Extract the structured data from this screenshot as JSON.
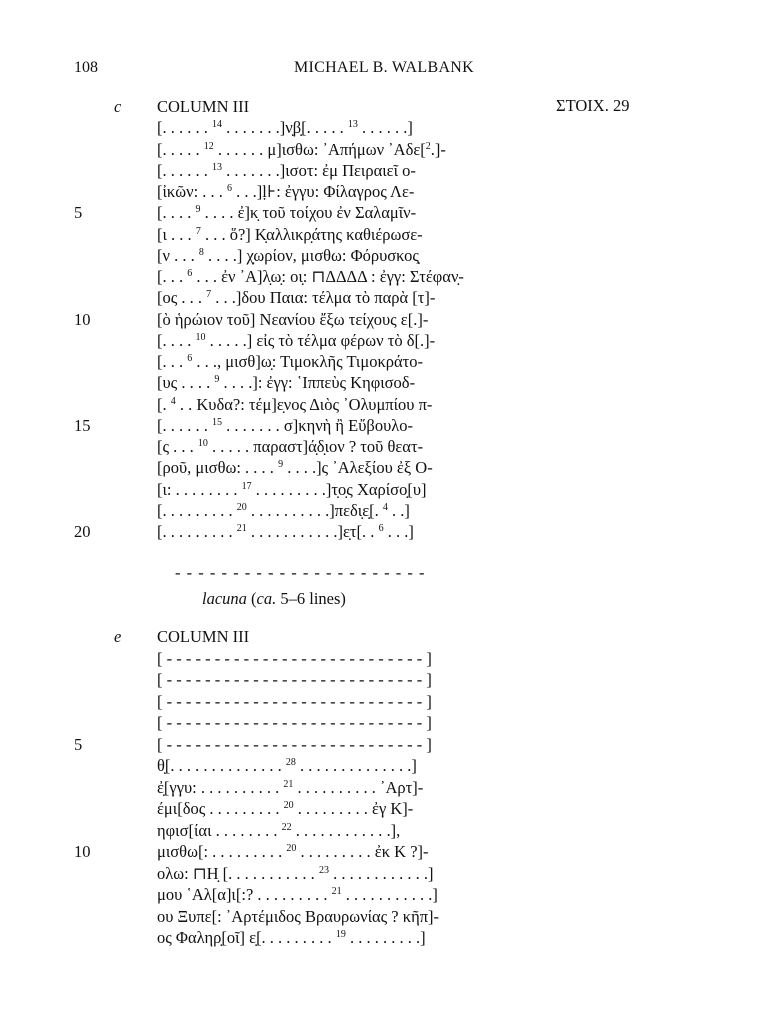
{
  "header": {
    "page_number": "108",
    "running_head": "MICHAEL B. WALBANK"
  },
  "section_c": {
    "label": "c",
    "column": "COLUMN III",
    "stoich": "ΣΤΟΙΧ. 29",
    "lines": [
      {
        "n": "",
        "segs": [
          "[. . . . . . ",
          {
            "sup": "14"
          },
          " . . . . . . .]ν̣β̣[. . . . . ",
          {
            "sup": "13"
          },
          " . . . . . .]"
        ]
      },
      {
        "n": "",
        "segs": [
          "[. . . . . ",
          {
            "sup": "12"
          },
          " . . . . . . μ]ισθω: ᾿Απήμων ᾿Αδε[",
          {
            "sup": "2"
          },
          ".]-"
        ]
      },
      {
        "n": "",
        "segs": [
          "[. . . . . . ",
          {
            "sup": "13"
          },
          " . . . . . . .]ισοτ: ἐμ Πειραιεῖ ο-"
        ]
      },
      {
        "n": "",
        "segs": [
          "[ἰκῶν: . . . ",
          {
            "sup": "6"
          },
          " . . .]ḷ⊦: ἐγγυ: Φίλαγρος Λε-"
        ]
      },
      {
        "n": "5",
        "segs": [
          "[. . . . ",
          {
            "sup": "9"
          },
          " . . . . ἐ]κ̣ τοῦ τοίχου ἐν Σαλαμῖν-"
        ]
      },
      {
        "n": "",
        "segs": [
          "[ι . . . ",
          {
            "sup": "7"
          },
          " . . . ὅ?] Κ̣αλλικρ̣άτης καθιέρωσε-"
        ]
      },
      {
        "n": "",
        "segs": [
          "[ν . . . ",
          {
            "sup": "8"
          },
          " . . . .] χ̣ωρίον, μισθω: Φόρυσκος̣"
        ]
      },
      {
        "n": "",
        "segs": [
          "[. . . ",
          {
            "sup": "6"
          },
          " . . . ἐν ᾿Α]λ̣ω̣: οι̣: ⊓ΔΔΔΔ : ἐγγ: Στέφαν̣-"
        ]
      },
      {
        "n": "",
        "segs": [
          "[ος . . . ",
          {
            "sup": "7"
          },
          " . . .]δου Παια: τέλμα τὸ παρὰ [τ]-"
        ]
      },
      {
        "n": "10",
        "segs": [
          "[ὸ ἡρώιον τοῦ] Νεανίου ἔξω τείχους ε[.]-"
        ]
      },
      {
        "n": "",
        "segs": [
          "[. . . . ",
          {
            "sup": "10"
          },
          " . . . . .] εἰς τὸ τέλμα φέρων τὸ δ[.]-"
        ]
      },
      {
        "n": "",
        "segs": [
          "[. . . ",
          {
            "sup": "6"
          },
          " . . ., μισθ]ω̣: Τιμοκλῆς Τιμοκράτο-"
        ]
      },
      {
        "n": "",
        "segs": [
          "[υς . . . . ",
          {
            "sup": "9"
          },
          " . . . .]: ἐγγ: ῾Ιππεὺς Κηφισοδ-"
        ]
      },
      {
        "n": "",
        "segs": [
          "[. ",
          {
            "sup": "4"
          },
          " . . Κυδα?: τέμ]ε̣νος Διὸς ᾿Ολυμπίου π-"
        ]
      },
      {
        "n": "15",
        "segs": [
          "[. . . . . . ",
          {
            "sup": "15"
          },
          " . . . . . . . σ]κηνὴ ἢ Εὔβουλο-"
        ]
      },
      {
        "n": "",
        "segs": [
          "[ς . . . ",
          {
            "sup": "10"
          },
          " . . . . . παραστ]ά̣δ̣ιον ? τοῦ θεατ-"
        ]
      },
      {
        "n": "",
        "segs": [
          "[ροῦ, μισθω: . . . . ",
          {
            "sup": "9"
          },
          " . . . .]ς ᾿Αλεξίου ἐξ Ο-"
        ]
      },
      {
        "n": "",
        "segs": [
          "[ι: . . . . . . . . ",
          {
            "sup": "17"
          },
          " . . . . . . . . .]τ̣ο̣ς Χαρίσο̣[υ]"
        ]
      },
      {
        "n": "",
        "segs": [
          "[. . . . . . . . . ",
          {
            "sup": "20"
          },
          " . . . . . . . . . .]πεδι̣ε̣[. ",
          {
            "sup": "4"
          },
          " . .]"
        ]
      },
      {
        "n": "20",
        "segs": [
          "[. . . . . . . . . ",
          {
            "sup": "21"
          },
          " . . . . . . . . . . .]ε̣τ[. . ",
          {
            "sup": "6"
          },
          " . . .]"
        ]
      }
    ]
  },
  "lacuna": {
    "rule": "- - - - - - - - - - - - - - - - - - - - - -",
    "word": "lacuna",
    "open": " (",
    "ca": "ca.",
    "rest": " 5–6 lines)"
  },
  "section_e": {
    "label": "e",
    "column": "COLUMN III",
    "lines": [
      {
        "n": "",
        "segs": [
          "[ - - - - - - - - - - - - - - - - - - - - - - - - - - - ]"
        ]
      },
      {
        "n": "",
        "segs": [
          "[ - - - - - - - - - - - - - - - - - - - - - - - - - - - ]"
        ]
      },
      {
        "n": "",
        "segs": [
          "[ - - - - - - - - - - - - - - - - - - - - - - - - - - - ]"
        ]
      },
      {
        "n": "",
        "segs": [
          "[ - - - - - - - - - - - - - - - - - - - - - - - - - - - ]"
        ]
      },
      {
        "n": "5",
        "segs": [
          "[ - - - - - - - - - - - - - - - - - - - - - - - - - - - ]"
        ]
      },
      {
        "n": "",
        "segs": [
          "θ̣[. . . . . . . . . . . . . . ",
          {
            "sup": "28"
          },
          " . . . . . . . . . . . . . .]"
        ]
      },
      {
        "n": "",
        "segs": [
          "ἐ̣[γγυ: . . . . . . . . . . ",
          {
            "sup": "21"
          },
          " . . . . . . . . . . ᾿Αρτ]-"
        ]
      },
      {
        "n": "",
        "segs": [
          "έμι[δος . . . . . . . . . ",
          {
            "sup": "20"
          },
          " . . . . . . . . . ἐγ Κ]-"
        ]
      },
      {
        "n": "",
        "segs": [
          "ηφισ[ίαι . . . . . . . . ",
          {
            "sup": "22"
          },
          " . . . . . . . . . . . .],"
        ]
      },
      {
        "n": "10",
        "segs": [
          "μισθω[: . . . . . . . . . ",
          {
            "sup": "20"
          },
          " . . . . . . . . . ἐκ Κ ?]-"
        ]
      },
      {
        "n": "",
        "segs": [
          "ολω: ⊓Η̣ [. . . . . . . . . . . ",
          {
            "sup": "23"
          },
          " . . . . . . . . . . . .]"
        ]
      },
      {
        "n": "",
        "segs": [
          "μου ῾Αλ[α]ι[:? . . . . . . . . . ",
          {
            "sup": "21"
          },
          " . . . . . . . . . . .]"
        ]
      },
      {
        "n": "",
        "segs": [
          "ου Ξυπε[: ᾿Αρτέμιδος Βραυρωνίας ? κῆπ]-"
        ]
      },
      {
        "n": "",
        "segs": [
          "ος Φαληρ̣[οῖ] ε̣[. . . . . . . . . ",
          {
            "sup": "19"
          },
          " . . . . . . . . .]"
        ]
      }
    ]
  }
}
